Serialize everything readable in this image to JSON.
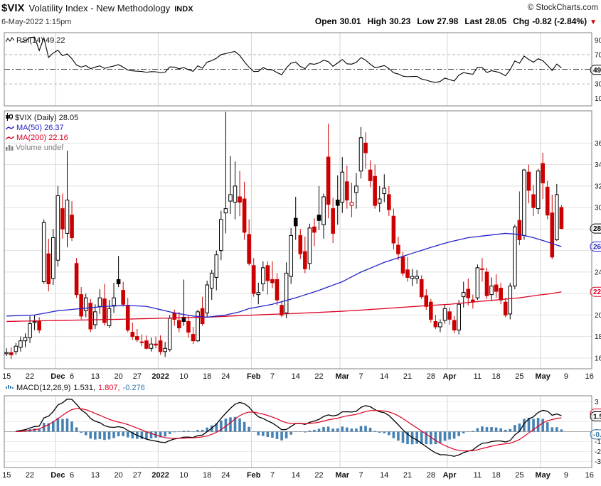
{
  "header": {
    "symbol": "$VIX",
    "name": "Volatility Index - New Methodology",
    "exchange": "INDX",
    "copyright": "© StockCharts.com",
    "datetime": "6-May-2022 1:15pm",
    "quote": {
      "open_label": "Open",
      "open": "30.01",
      "high_label": "High",
      "high": "30.23",
      "low_label": "Low",
      "low": "27.98",
      "last_label": "Last",
      "last": "28.05",
      "chg_label": "Chg",
      "chg": "-0.82 (-2.84%)",
      "arrow": "▼"
    }
  },
  "legends": {
    "rsi": "RSI(14) 49.22",
    "price": "$VIX (Daily) 28.05",
    "ma50": "MA(50) 26.37",
    "ma200": "MA(200) 22.16",
    "volume": "Volume undef",
    "macd_label": "MACD(12,26,9)",
    "macd_value": "1.531,",
    "signal_value": "1.807,",
    "hist_value": "-0.276"
  },
  "colors": {
    "up": "#000000",
    "down": "#cc0000",
    "ma50": "#2222cc",
    "ma200": "#dd0022",
    "macd_hist": "#4682b4",
    "macd_line": "#000000",
    "signal_line": "#dd0022",
    "grid": "#e0e0e0",
    "vgrid": "#d4d4d4",
    "border": "#808080",
    "hist_text": "#3377aa"
  },
  "chart_data": {
    "type": "candlestick",
    "title": "$VIX Volatility Index - New Methodology (Daily)",
    "x_slots": 126,
    "month_gridline_indices": [
      11,
      33,
      53,
      72,
      95,
      115
    ],
    "x_ticks": [
      {
        "i": 0,
        "t": "15"
      },
      {
        "i": 5,
        "t": "22"
      },
      {
        "i": 11,
        "t": "Dec",
        "b": true
      },
      {
        "i": 14,
        "t": "6"
      },
      {
        "i": 19,
        "t": "13"
      },
      {
        "i": 24,
        "t": "20"
      },
      {
        "i": 28,
        "t": "27"
      },
      {
        "i": 33,
        "t": "2022",
        "b": true
      },
      {
        "i": 38,
        "t": "10"
      },
      {
        "i": 43,
        "t": "18"
      },
      {
        "i": 47,
        "t": "24"
      },
      {
        "i": 53,
        "t": "Feb",
        "b": true
      },
      {
        "i": 57,
        "t": "7"
      },
      {
        "i": 62,
        "t": "14"
      },
      {
        "i": 67,
        "t": "22"
      },
      {
        "i": 72,
        "t": "Mar",
        "b": true
      },
      {
        "i": 76,
        "t": "7"
      },
      {
        "i": 81,
        "t": "14"
      },
      {
        "i": 86,
        "t": "21"
      },
      {
        "i": 91,
        "t": "28"
      },
      {
        "i": 95,
        "t": "Apr",
        "b": true
      },
      {
        "i": 101,
        "t": "11"
      },
      {
        "i": 105,
        "t": "18"
      },
      {
        "i": 110,
        "t": "25"
      },
      {
        "i": 115,
        "t": "May",
        "b": true
      },
      {
        "i": 120,
        "t": "9"
      },
      {
        "i": 125,
        "t": "16"
      }
    ],
    "dates": [
      "2021-11-15",
      "2021-11-16",
      "2021-11-17",
      "2021-11-18",
      "2021-11-19",
      "2021-11-22",
      "2021-11-23",
      "2021-11-24",
      "2021-11-26",
      "2021-11-29",
      "2021-11-30",
      "2021-12-01",
      "2021-12-02",
      "2021-12-03",
      "2021-12-06",
      "2021-12-07",
      "2021-12-08",
      "2021-12-09",
      "2021-12-10",
      "2021-12-13",
      "2021-12-14",
      "2021-12-15",
      "2021-12-16",
      "2021-12-17",
      "2021-12-20",
      "2021-12-21",
      "2021-12-22",
      "2021-12-23",
      "2021-12-27",
      "2021-12-28",
      "2021-12-29",
      "2021-12-30",
      "2021-12-31",
      "2022-01-03",
      "2022-01-04",
      "2022-01-05",
      "2022-01-06",
      "2022-01-07",
      "2022-01-10",
      "2022-01-11",
      "2022-01-12",
      "2022-01-13",
      "2022-01-14",
      "2022-01-18",
      "2022-01-19",
      "2022-01-20",
      "2022-01-21",
      "2022-01-24",
      "2022-01-25",
      "2022-01-26",
      "2022-01-27",
      "2022-01-28",
      "2022-01-31",
      "2022-02-01",
      "2022-02-02",
      "2022-02-03",
      "2022-02-04",
      "2022-02-07",
      "2022-02-08",
      "2022-02-09",
      "2022-02-10",
      "2022-02-11",
      "2022-02-14",
      "2022-02-15",
      "2022-02-16",
      "2022-02-17",
      "2022-02-18",
      "2022-02-22",
      "2022-02-23",
      "2022-02-24",
      "2022-02-25",
      "2022-02-28",
      "2022-03-01",
      "2022-03-02",
      "2022-03-03",
      "2022-03-04",
      "2022-03-07",
      "2022-03-08",
      "2022-03-09",
      "2022-03-10",
      "2022-03-11",
      "2022-03-14",
      "2022-03-15",
      "2022-03-16",
      "2022-03-17",
      "2022-03-18",
      "2022-03-21",
      "2022-03-22",
      "2022-03-23",
      "2022-03-24",
      "2022-03-25",
      "2022-03-28",
      "2022-03-29",
      "2022-03-30",
      "2022-03-31",
      "2022-04-01",
      "2022-04-04",
      "2022-04-05",
      "2022-04-06",
      "2022-04-07",
      "2022-04-08",
      "2022-04-11",
      "2022-04-12",
      "2022-04-13",
      "2022-04-14",
      "2022-04-18",
      "2022-04-19",
      "2022-04-20",
      "2022-04-21",
      "2022-04-22",
      "2022-04-25",
      "2022-04-26",
      "2022-04-27",
      "2022-04-28",
      "2022-04-29",
      "2022-05-02",
      "2022-05-03",
      "2022-05-04",
      "2022-05-05",
      "2022-05-06"
    ],
    "ohlc": [
      [
        16.4,
        16.9,
        16.2,
        16.5
      ],
      [
        16.5,
        17,
        15.9,
        16.3
      ],
      [
        16.6,
        17.4,
        16.3,
        17.1
      ],
      [
        17,
        18,
        16.6,
        17.6
      ],
      [
        17.6,
        18.3,
        17,
        17.9
      ],
      [
        17.9,
        19.9,
        17.4,
        19.2
      ],
      [
        19.3,
        20,
        18.6,
        19.4
      ],
      [
        19.4,
        19.8,
        18.3,
        18.6
      ],
      [
        23.1,
        28.9,
        22.9,
        28.6
      ],
      [
        25.7,
        27.1,
        22.2,
        22.9
      ],
      [
        23.4,
        28,
        22.8,
        27.2
      ],
      [
        25.1,
        32,
        24.5,
        31.1
      ],
      [
        29.9,
        31.3,
        27.1,
        28
      ],
      [
        27.6,
        35.3,
        26.3,
        30.7
      ],
      [
        29.3,
        30.6,
        26.9,
        27.2
      ],
      [
        24.8,
        25.3,
        21.6,
        21.9
      ],
      [
        21.9,
        22.6,
        19.6,
        19.9
      ],
      [
        20.4,
        22,
        19.8,
        21.6
      ],
      [
        21.1,
        21.5,
        18.4,
        18.7
      ],
      [
        19.1,
        21,
        18.7,
        20.3
      ],
      [
        20.8,
        22.4,
        20.1,
        21.6
      ],
      [
        21.5,
        22.9,
        19,
        19.3
      ],
      [
        19,
        21.4,
        18.8,
        20.6
      ],
      [
        20.9,
        23,
        20.2,
        21.6
      ],
      [
        23.3,
        25.5,
        22.6,
        22.9
      ],
      [
        22.3,
        23.1,
        20.8,
        21
      ],
      [
        20.9,
        21.6,
        18.4,
        18.6
      ],
      [
        18.4,
        19.3,
        17.7,
        18
      ],
      [
        18,
        18.7,
        17.5,
        17.7
      ],
      [
        17.5,
        18.2,
        17.1,
        17.5
      ],
      [
        17.6,
        18.1,
        16.8,
        16.9
      ],
      [
        16.9,
        17.9,
        16.6,
        17.3
      ],
      [
        17.3,
        18,
        16.9,
        17.2
      ],
      [
        17.6,
        18.1,
        16.3,
        16.6
      ],
      [
        16.6,
        17.5,
        16.1,
        16.9
      ],
      [
        16.8,
        20,
        16.6,
        19.7
      ],
      [
        20.2,
        20.5,
        19,
        19.6
      ],
      [
        19.5,
        20.3,
        18.4,
        18.8
      ],
      [
        19.8,
        23.3,
        19,
        19.4
      ],
      [
        19.4,
        20,
        17.9,
        18.4
      ],
      [
        18.2,
        18.9,
        17.3,
        17.6
      ],
      [
        17.6,
        20.5,
        17.5,
        20.3
      ],
      [
        20.6,
        21.7,
        19,
        19.2
      ],
      [
        20.2,
        23.2,
        19.8,
        22.8
      ],
      [
        22.5,
        24.2,
        21.4,
        23.9
      ],
      [
        23.5,
        26,
        22.3,
        25.6
      ],
      [
        26,
        29.7,
        25.1,
        28.9
      ],
      [
        29.5,
        38.9,
        27.6,
        29.9
      ],
      [
        30.6,
        34.8,
        29.4,
        31.2
      ],
      [
        30.5,
        34.3,
        28.9,
        32
      ],
      [
        31,
        33.4,
        29.2,
        30.5
      ],
      [
        30.8,
        32.4,
        27,
        27.7
      ],
      [
        27.5,
        28.9,
        24.6,
        24.8
      ],
      [
        24.6,
        25.3,
        21.7,
        22
      ],
      [
        21.9,
        23,
        21,
        22.1
      ],
      [
        22.9,
        25,
        22.2,
        24.4
      ],
      [
        24.6,
        25,
        21.9,
        23.2
      ],
      [
        23.3,
        25,
        22.5,
        23
      ],
      [
        23.3,
        23.9,
        20.9,
        21.4
      ],
      [
        20.9,
        21.3,
        19.8,
        20
      ],
      [
        20.2,
        24.9,
        19.7,
        23.9
      ],
      [
        23.6,
        28.1,
        22.9,
        27.4
      ],
      [
        29,
        31,
        27,
        28.3
      ],
      [
        27.4,
        28,
        25.2,
        25.7
      ],
      [
        25.9,
        27.3,
        23.9,
        24.3
      ],
      [
        24.8,
        28.5,
        24.2,
        28.1
      ],
      [
        28.2,
        29,
        26.4,
        27.7
      ],
      [
        29.3,
        32,
        27.9,
        28.8
      ],
      [
        28.4,
        31.3,
        27.1,
        31
      ],
      [
        34.7,
        37.8,
        29,
        30.3
      ],
      [
        29.9,
        30.9,
        26.7,
        27.6
      ],
      [
        30.7,
        33,
        28.4,
        30.2
      ],
      [
        30.5,
        34.7,
        29.5,
        33.3
      ],
      [
        32.4,
        33.9,
        29.9,
        30.7
      ],
      [
        30.2,
        32.3,
        29.1,
        30.5
      ],
      [
        31.4,
        33.2,
        29.9,
        32
      ],
      [
        33.4,
        37.5,
        32.7,
        36.5
      ],
      [
        36,
        37,
        33.6,
        35.1
      ],
      [
        33.5,
        34.4,
        31.9,
        32.5
      ],
      [
        32.9,
        34,
        29.9,
        30.2
      ],
      [
        30.4,
        32,
        29.6,
        30.8
      ],
      [
        31.3,
        33.1,
        30.5,
        31.8
      ],
      [
        31.2,
        32,
        29.2,
        29.8
      ],
      [
        29.2,
        29.9,
        26.1,
        26.7
      ],
      [
        26.5,
        27.3,
        25.1,
        25.7
      ],
      [
        25.4,
        25.9,
        23.6,
        23.9
      ],
      [
        24.2,
        25.4,
        23.1,
        23.5
      ],
      [
        23.4,
        24.3,
        22.7,
        23.6
      ],
      [
        23.4,
        24.2,
        22.9,
        23.6
      ],
      [
        23.3,
        23.7,
        21.5,
        21.7
      ],
      [
        21.8,
        22.4,
        20.5,
        20.8
      ],
      [
        21.2,
        21.5,
        19.3,
        19.6
      ],
      [
        19.4,
        20,
        18.7,
        18.9
      ],
      [
        18.9,
        19.6,
        18.4,
        19.3
      ],
      [
        19.5,
        21,
        19.2,
        20.6
      ],
      [
        20.3,
        20.7,
        19.1,
        19.6
      ],
      [
        19.5,
        19.9,
        18.3,
        18.6
      ],
      [
        18.6,
        21.4,
        18.2,
        21
      ],
      [
        21.7,
        23.1,
        20.7,
        22.1
      ],
      [
        22.4,
        23.4,
        20.9,
        21.6
      ],
      [
        21.4,
        21.9,
        20.6,
        21.2
      ],
      [
        21.6,
        24.7,
        21.4,
        24.4
      ],
      [
        24.3,
        25.3,
        23.1,
        24.3
      ],
      [
        24,
        24.4,
        21.5,
        21.8
      ],
      [
        21.9,
        23.5,
        21.3,
        22.7
      ],
      [
        22.8,
        23.8,
        21.6,
        22.2
      ],
      [
        22.5,
        23,
        21,
        21.4
      ],
      [
        21.2,
        21.6,
        19.8,
        20
      ],
      [
        20.1,
        23,
        19.6,
        22.7
      ],
      [
        22.7,
        28.4,
        22.4,
        28.2
      ],
      [
        28.8,
        31.5,
        26.5,
        27
      ],
      [
        27.4,
        33.6,
        27,
        33.5
      ],
      [
        33.3,
        34,
        30.4,
        31.6
      ],
      [
        31.2,
        32.1,
        29.2,
        30
      ],
      [
        29.9,
        33.6,
        29.4,
        33.4
      ],
      [
        34.1,
        35.1,
        30.8,
        32.3
      ],
      [
        31.9,
        32.5,
        28.9,
        29.3
      ],
      [
        29.5,
        31.2,
        25.2,
        25.4
      ],
      [
        27,
        32.2,
        26.9,
        31.2
      ],
      [
        30.01,
        30.23,
        27.98,
        28.05
      ]
    ],
    "price_panel": {
      "last": 28.05,
      "range": [
        15,
        39
      ],
      "ticks": [
        36,
        34,
        32,
        30,
        24,
        20,
        18,
        16
      ],
      "gridline_values": [
        16,
        18,
        20,
        22,
        24,
        26,
        28,
        30,
        32,
        34,
        36
      ],
      "markers": [
        {
          "v": 28.05,
          "t": "28.05",
          "c": "#000000"
        },
        {
          "v": 26.37,
          "t": "26.37",
          "c": "#2222cc"
        },
        {
          "v": 22.16,
          "t": "22.16",
          "c": "#dd0022"
        }
      ],
      "ma50_last": 26.37,
      "ma200_last": 22.16,
      "ma50": [
        [
          0,
          19.9
        ],
        [
          6,
          20.0
        ],
        [
          11,
          20.4
        ],
        [
          16,
          20.6
        ],
        [
          21,
          20.8
        ],
        [
          26,
          20.9
        ],
        [
          30,
          20.8
        ],
        [
          33,
          20.5
        ],
        [
          36,
          20.2
        ],
        [
          40,
          19.9
        ],
        [
          43,
          19.8
        ],
        [
          47,
          20.0
        ],
        [
          50,
          20.3
        ],
        [
          52,
          20.6
        ],
        [
          57,
          21.0
        ],
        [
          62,
          21.6
        ],
        [
          67,
          22.3
        ],
        [
          72,
          23.1
        ],
        [
          76,
          24.0
        ],
        [
          81,
          24.9
        ],
        [
          86,
          25.6
        ],
        [
          91,
          26.3
        ],
        [
          95,
          26.8
        ],
        [
          99,
          27.2
        ],
        [
          103,
          27.4
        ],
        [
          107,
          27.6
        ],
        [
          110,
          27.5
        ],
        [
          113,
          27.2
        ],
        [
          116,
          26.8
        ],
        [
          119,
          26.37
        ]
      ],
      "ma200": [
        [
          0,
          19.4
        ],
        [
          11,
          19.5
        ],
        [
          24,
          19.6
        ],
        [
          33,
          19.7
        ],
        [
          43,
          19.8
        ],
        [
          53,
          20.0
        ],
        [
          62,
          20.15
        ],
        [
          72,
          20.35
        ],
        [
          81,
          20.6
        ],
        [
          91,
          20.9
        ],
        [
          95,
          21.0
        ],
        [
          101,
          21.25
        ],
        [
          105,
          21.4
        ],
        [
          110,
          21.6
        ],
        [
          114,
          21.85
        ],
        [
          117,
          22.0
        ],
        [
          119,
          22.16
        ]
      ]
    },
    "rsi_panel": {
      "period": 14,
      "last": 49.22,
      "range": [
        0,
        100
      ],
      "ticks": [
        90,
        70,
        30,
        10
      ],
      "dashed_levels": [
        70,
        30
      ],
      "dashdot_levels": [
        50
      ],
      "markers": [
        {
          "v": 49.22,
          "t": "49.22",
          "c": "#000000"
        }
      ]
    },
    "macd_panel": {
      "params": [
        12,
        26,
        9
      ],
      "macd_last": 1.531,
      "signal_last": 1.807,
      "hist_last": -0.276,
      "range": [
        -3.6,
        3.6
      ],
      "ticks": [
        3,
        0,
        -1,
        -2,
        -3
      ],
      "gridline_values": [
        3,
        2,
        1,
        -1,
        -2,
        -3
      ],
      "markers": [
        {
          "v": 1.807,
          "t": "1.807",
          "c": "#dd0022"
        },
        {
          "v": 1.531,
          "t": "1.531",
          "c": "#000000"
        },
        {
          "v": -0.276,
          "t": "-0.276",
          "c": "#3377aa"
        }
      ]
    }
  }
}
